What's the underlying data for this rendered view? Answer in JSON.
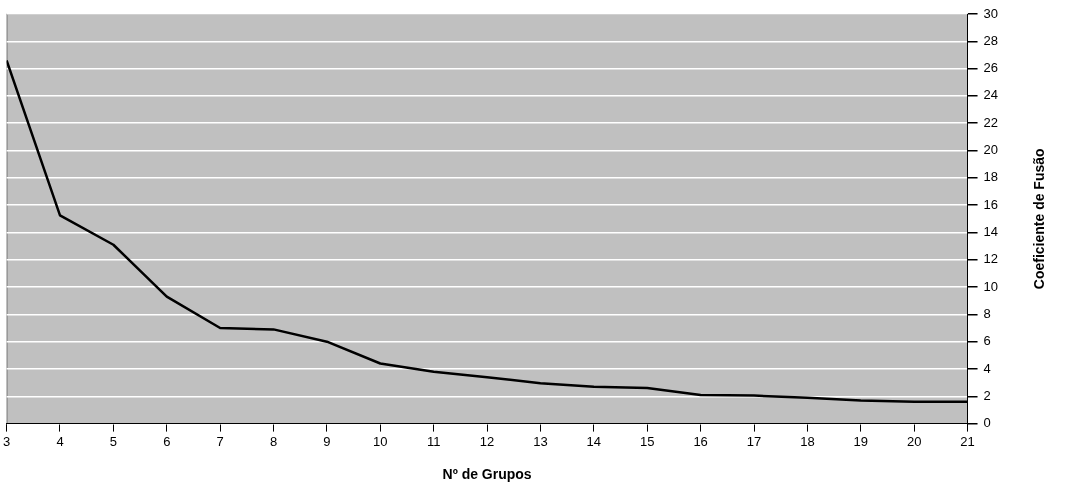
{
  "chart_data": {
    "type": "line",
    "xlabel": "Nº de Grupos",
    "ylabel": "Coeficiente de Fusão",
    "x": [
      3,
      4,
      5,
      6,
      7,
      8,
      9,
      10,
      11,
      12,
      13,
      14,
      15,
      16,
      17,
      18,
      19,
      20,
      21
    ],
    "series": [
      {
        "color": "#000000",
        "values": [
          26.6,
          15.25,
          13.1,
          9.3,
          7.0,
          6.9,
          6.0,
          4.4,
          3.8,
          3.4,
          2.95,
          2.7,
          2.6,
          2.1,
          2.05,
          1.9,
          1.7,
          1.6,
          1.6
        ]
      }
    ],
    "xlim": [
      3,
      21
    ],
    "xticks": [
      3,
      4,
      5,
      6,
      7,
      8,
      9,
      10,
      11,
      12,
      13,
      14,
      15,
      16,
      17,
      18,
      19,
      20,
      21
    ],
    "ylim": [
      0,
      30
    ],
    "yticks": [
      0,
      2,
      4,
      6,
      8,
      10,
      12,
      14,
      16,
      18,
      20,
      22,
      24,
      26,
      28,
      30
    ],
    "grid": "y",
    "legend": false,
    "marker": "none",
    "line_style": "solid"
  }
}
